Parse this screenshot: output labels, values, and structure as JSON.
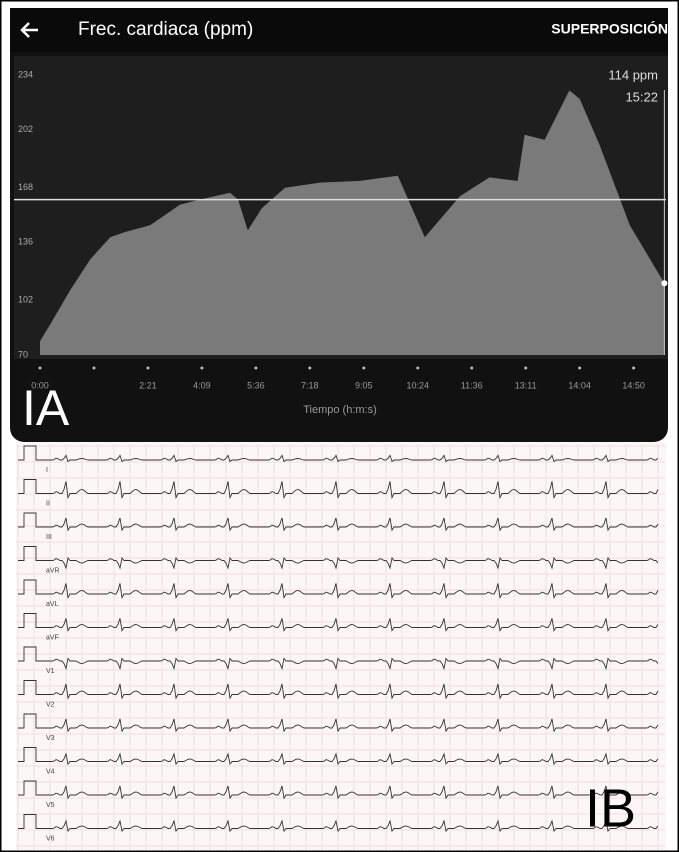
{
  "chart_data": {
    "type": "area",
    "title": "Frec. cardiaca (ppm)",
    "action": "SUPERPOSICIÓN",
    "panel_label": "IA",
    "x_label": "Tiempo (h:m:s)",
    "annotation": [
      "114 ppm",
      "15:22"
    ],
    "color": "#7a7a7a",
    "x": [
      0,
      0.19,
      0.56,
      0.93,
      1.3,
      1.57,
      2.04,
      2.59,
      2.96,
      3.52,
      3.67,
      3.85,
      4.11,
      4.54,
      5.19,
      5.93,
      6.63,
      7.13,
      7.78,
      8.33,
      8.85,
      8.98,
      9.35,
      9.81,
      10.0,
      10.37,
      10.93,
      11.57
    ],
    "values": [
      78,
      88,
      108,
      126,
      139,
      142,
      146,
      158,
      161,
      165,
      161,
      143,
      156,
      168,
      171,
      172,
      175,
      139,
      163,
      174,
      172,
      199,
      196,
      225,
      220,
      193,
      146,
      112
    ],
    "reference_line": 161,
    "xlim": [
      0,
      11.6
    ],
    "ylim": [
      70,
      234
    ],
    "yticks": [
      70,
      102,
      136,
      168,
      202,
      234
    ],
    "xticks": [
      {
        "value": 0,
        "label": "0:00"
      },
      {
        "value": 1,
        "label": null
      },
      {
        "value": 2,
        "label": "2:21"
      },
      {
        "value": 3,
        "label": "4:09"
      },
      {
        "value": 4,
        "label": "5:36"
      },
      {
        "value": 5,
        "label": "7:18"
      },
      {
        "value": 6,
        "label": "9:05"
      },
      {
        "value": 7,
        "label": "10:24"
      },
      {
        "value": 8,
        "label": "11:36"
      },
      {
        "value": 9,
        "label": "13:11"
      },
      {
        "value": 10,
        "label": "14:04"
      },
      {
        "value": 11,
        "label": "14:50"
      }
    ]
  },
  "ecg": {
    "panel_label": "IB",
    "leads": [
      "I",
      "II",
      "III",
      "aVR",
      "aVL",
      "aVF",
      "V1",
      "V2",
      "V3",
      "V4",
      "V5",
      "V6"
    ]
  }
}
